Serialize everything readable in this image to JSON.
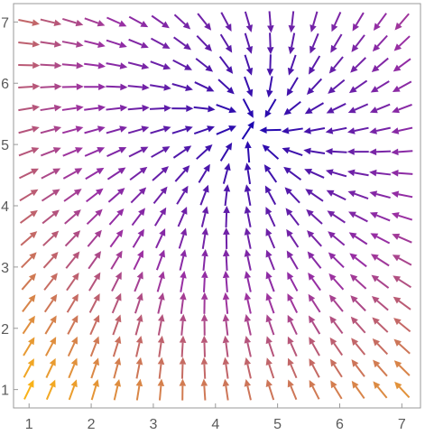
{
  "chart_data": {
    "type": "vector-field",
    "title": "",
    "xlabel": "",
    "ylabel": "",
    "xlim": [
      0.75,
      7.3
    ],
    "ylim": [
      0.7,
      7.3
    ],
    "xticks": [
      "1",
      "2",
      "3",
      "4",
      "5",
      "6",
      "7"
    ],
    "yticks": [
      "1",
      "2",
      "3",
      "4",
      "5",
      "6",
      "7"
    ],
    "grid": false,
    "legend": "none",
    "color_scale": {
      "low": "#1a06b0",
      "mid": "#9a2fa3",
      "high": "#f9b218",
      "meaning": "arrow magnitude (blue = short, orange/yellow = long)"
    },
    "sample_grid": {
      "x_range": [
        1.0,
        7.0
      ],
      "y_range": [
        1.0,
        7.0
      ],
      "points_per_axis": 18
    },
    "field": {
      "description": "vector field converging toward a point near (4.6, 5.3)",
      "sink": [
        4.6,
        5.3
      ],
      "swirl": 0.25
    }
  }
}
